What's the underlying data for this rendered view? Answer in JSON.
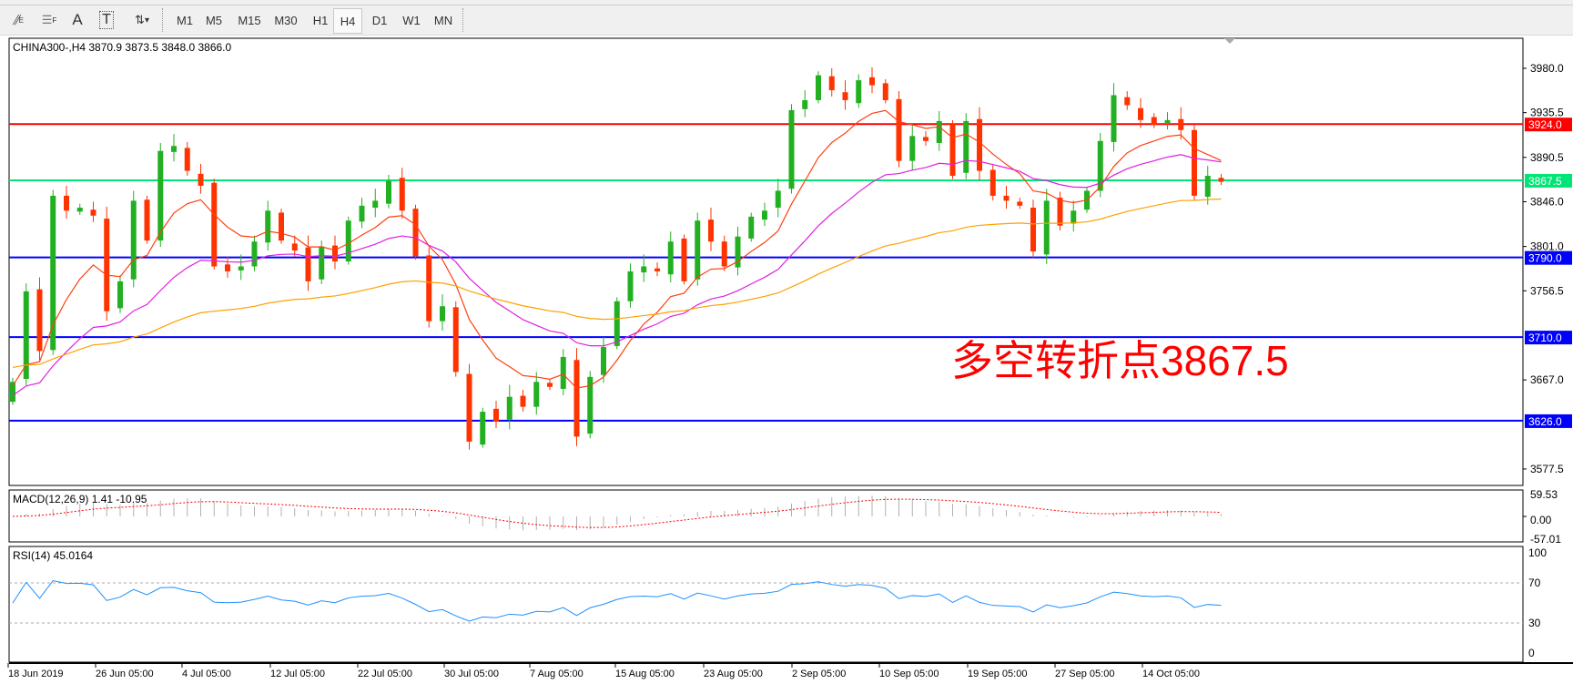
{
  "toolbar": {
    "tools": [
      {
        "icon": "fibonacci-expansion-icon",
        "label": "E"
      },
      {
        "icon": "fibonacci-lines-icon",
        "label": "F"
      },
      {
        "icon": "text-icon",
        "label": "A"
      },
      {
        "icon": "text-label-icon",
        "label": "T"
      },
      {
        "icon": "arrows-dropdown-icon",
        "label": "▾"
      }
    ],
    "timeframes": [
      "M1",
      "M5",
      "M15",
      "M30",
      "H1",
      "H4",
      "D1",
      "W1",
      "MN"
    ],
    "active_timeframe": "H4"
  },
  "chart_info": "CHINA300-,H4  3870.9 3873.5 3848.0 3866.0",
  "annotation": {
    "text": "多空转折点3867.5",
    "color": "#ff0000"
  },
  "chart_data": {
    "type": "candlestick",
    "symbol": "CHINA300-",
    "timeframe": "H4",
    "ohlc_last": {
      "open": 3870.9,
      "high": 3873.5,
      "low": 3848.0,
      "close": 3866.0
    },
    "closes": [
      3665,
      3756,
      3696,
      3852,
      3837,
      3840,
      3832,
      3736,
      3766,
      3847,
      3807,
      3897,
      3902,
      3877,
      3862,
      3781,
      3776,
      3781,
      3806,
      3837,
      3807,
      3797,
      3766,
      3801,
      3786,
      3827,
      3842,
      3847,
      3867,
      3837,
      3791,
      3726,
      3741,
      3675,
      3605,
      3635,
      3625,
      3650,
      3640,
      3665,
      3660,
      3690,
      3610,
      3670,
      3700,
      3746,
      3776,
      3781,
      3776,
      3806,
      3766,
      3827,
      3806,
      3781,
      3811,
      3831,
      3837,
      3857,
      3938,
      3948,
      3973,
      3958,
      3948,
      3968,
      3963,
      3948,
      3887,
      3912,
      3907,
      3927,
      3872,
      3927,
      3877,
      3852,
      3847,
      3842,
      3796,
      3847,
      3822,
      3837,
      3857,
      3907,
      3953,
      3943,
      3928,
      3923,
      3928,
      3918,
      3852,
      3872,
      3866
    ],
    "colors": {
      "up": "#22b022",
      "down": "#ff3300"
    },
    "y_axis_ticks": [
      3980.0,
      3935.5,
      3890.5,
      3846.0,
      3801.0,
      3756.5,
      3667.0,
      3577.5
    ],
    "y_range": [
      3560,
      4000
    ],
    "levels": [
      {
        "value": "3924.0",
        "color": "#ff0000"
      },
      {
        "value": "3867.5",
        "color": "#00e676"
      },
      {
        "value": "3790.0",
        "color": "#0000ff"
      },
      {
        "value": "3710.0",
        "color": "#0000ff"
      },
      {
        "value": "3626.0",
        "color": "#0000ff"
      }
    ],
    "moving_averages": [
      {
        "color": "#ff4010"
      },
      {
        "color": "#e020e0"
      },
      {
        "color": "#ffa000"
      }
    ],
    "x_labels": [
      "18 Jun 2019",
      "26 Jun 05:00",
      "4 Jul 05:00",
      "12 Jul 05:00",
      "22 Jul 05:00",
      "30 Jul 05:00",
      "7 Aug 05:00",
      "15 Aug 05:00",
      "23 Aug 05:00",
      "2 Sep 05:00",
      "10 Sep 05:00",
      "19 Sep 05:00",
      "27 Sep 05:00",
      "14 Oct 05:00"
    ],
    "macd": {
      "label": "MACD(12,26,9) 1.41 -10.95",
      "ticks": [
        "59.53",
        "0.00",
        "-57.01"
      ]
    },
    "rsi": {
      "label": "RSI(14) 45.0164",
      "ticks": [
        "100",
        "70",
        "30",
        "0"
      ],
      "levels": [
        70,
        30
      ]
    }
  }
}
